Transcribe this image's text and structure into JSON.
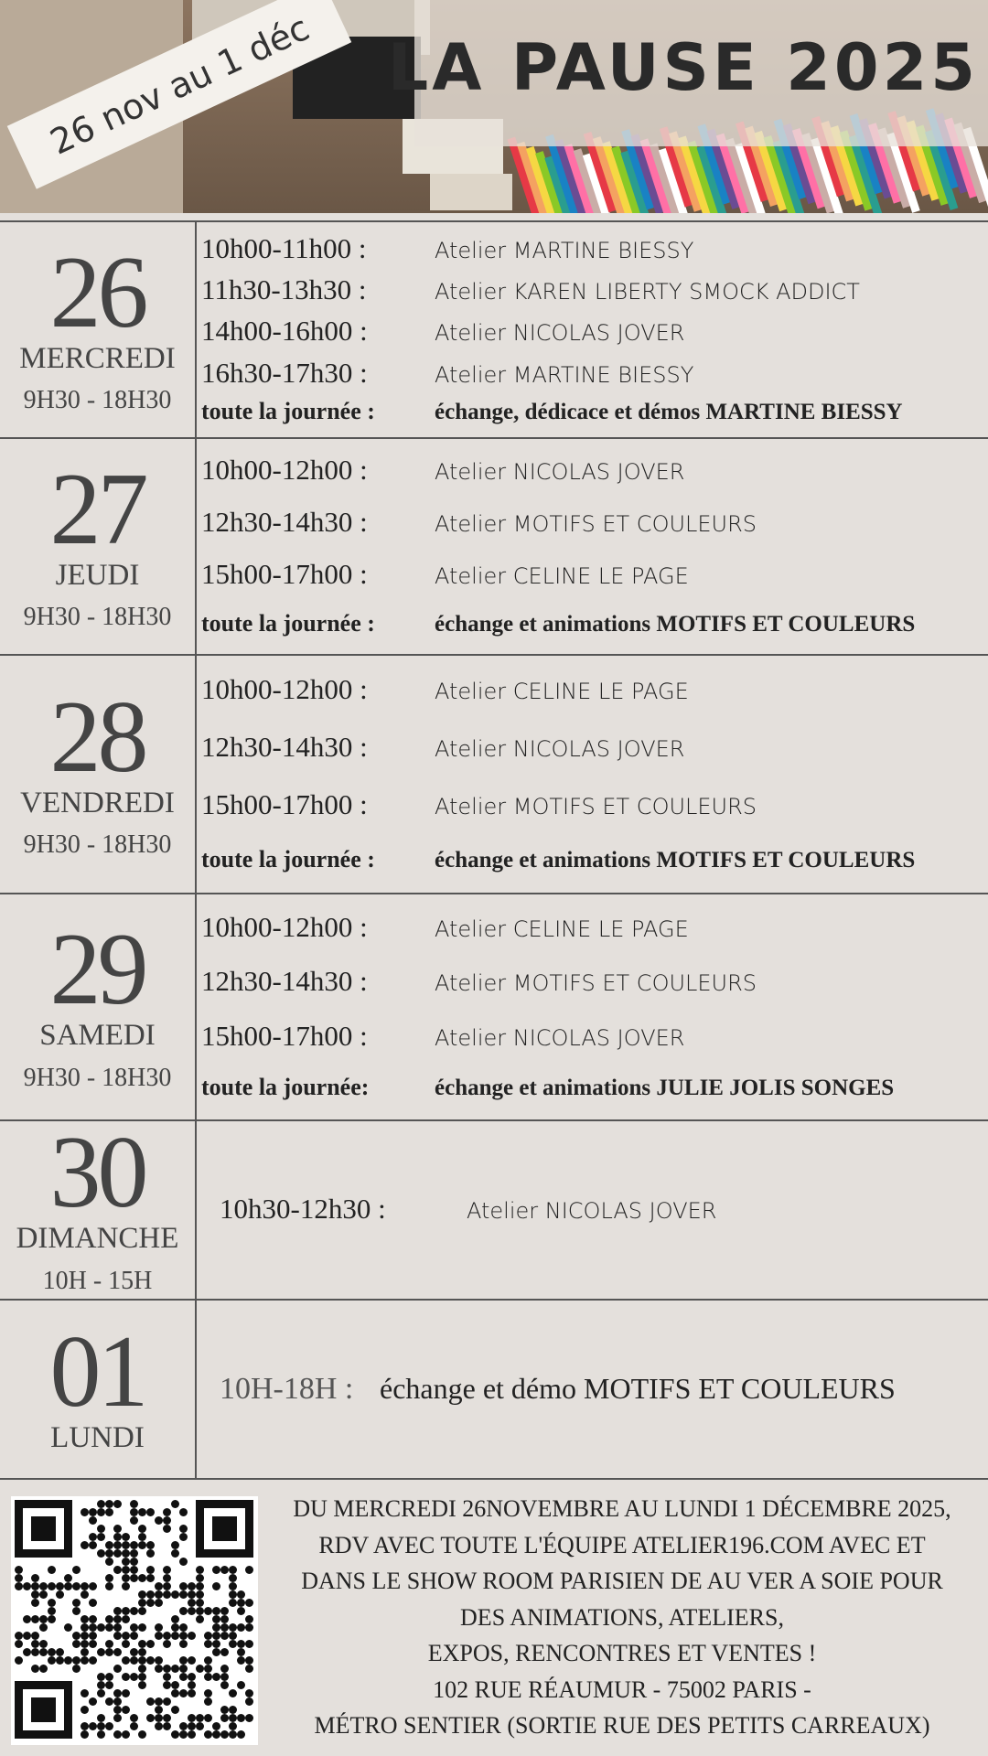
{
  "header": {
    "badge": "26 nov au 1 déc",
    "title": "LA PAUSE 2025"
  },
  "days": [
    {
      "number": "26",
      "weekday": "MERCREDI",
      "hours": "9H30 - 18H30",
      "slots": [
        {
          "time": "10h00-11h00 :",
          "label": "Atelier MARTINE BIESSY"
        },
        {
          "time": "11h30-13h30 :",
          "label": "Atelier KAREN LIBERTY SMOCK ADDICT"
        },
        {
          "time": "14h00-16h00 :",
          "label": "Atelier NICOLAS JOVER"
        },
        {
          "time": "16h30-17h30 :",
          "label": "Atelier MARTINE BIESSY"
        }
      ],
      "all_day": {
        "time": "toute la journée :",
        "label": "échange, dédicace et démos  MARTINE BIESSY"
      }
    },
    {
      "number": "27",
      "weekday": "JEUDI",
      "hours": "9H30 - 18H30",
      "slots": [
        {
          "time": "10h00-12h00 :",
          "label": "Atelier NICOLAS JOVER"
        },
        {
          "time": "12h30-14h30 :",
          "label": "Atelier MOTIFS ET COULEURS"
        },
        {
          "time": "15h00-17h00 :",
          "label": "Atelier CELINE LE PAGE"
        }
      ],
      "all_day": {
        "time": "toute la journée :",
        "label": "échange et animations MOTIFS ET COULEURS"
      }
    },
    {
      "number": "28",
      "weekday": "VENDREDI",
      "hours": "9H30 - 18H30",
      "slots": [
        {
          "time": "10h00-12h00 :",
          "label": "Atelier CELINE LE PAGE"
        },
        {
          "time": "12h30-14h30 :",
          "label": "Atelier NICOLAS JOVER"
        },
        {
          "time": "15h00-17h00 :",
          "label": "Atelier MOTIFS ET COULEURS"
        }
      ],
      "all_day": {
        "time": "toute la journée :",
        "label": "échange et animations MOTIFS ET COULEURS"
      }
    },
    {
      "number": "29",
      "weekday": "SAMEDI",
      "hours": "9H30 - 18H30",
      "slots": [
        {
          "time": "10h00-12h00 :",
          "label": "Atelier CELINE LE PAGE"
        },
        {
          "time": "12h30-14h30 :",
          "label": "Atelier MOTIFS ET COULEURS"
        },
        {
          "time": "15h00-17h00 :",
          "label": "Atelier NICOLAS JOVER"
        }
      ],
      "all_day": {
        "time": "toute la journée:",
        "label": "échange et animations JULIE JOLIS SONGES"
      }
    },
    {
      "number": "30",
      "weekday": "DIMANCHE",
      "hours": "10H - 15H",
      "slots": [
        {
          "time": "10h30-12h30 :",
          "label": "Atelier NICOLAS JOVER"
        }
      ]
    },
    {
      "number": "01",
      "weekday": "LUNDI",
      "slots": [
        {
          "time": "10H-18H :",
          "label": "échange et démo MOTIFS ET COULEURS"
        }
      ]
    }
  ],
  "footer": {
    "lines": [
      "DU MERCREDI 26NOVEMBRE AU LUNDI 1 DÉCEMBRE 2025,",
      "RDV AVEC TOUTE L'ÉQUIPE ATELIER196.COM AVEC ET",
      "DANS LE SHOW ROOM PARISIEN DE AU VER A SOIE POUR",
      "DES ANIMATIONS, ATELIERS,",
      "EXPOS, RENCONTRES ET VENTES !",
      "102 RUE RÉAUMUR - 75002 PARIS -",
      "MÉTRO SENTIER (SORTIE RUE DES PETITS CARREAUX)"
    ]
  }
}
